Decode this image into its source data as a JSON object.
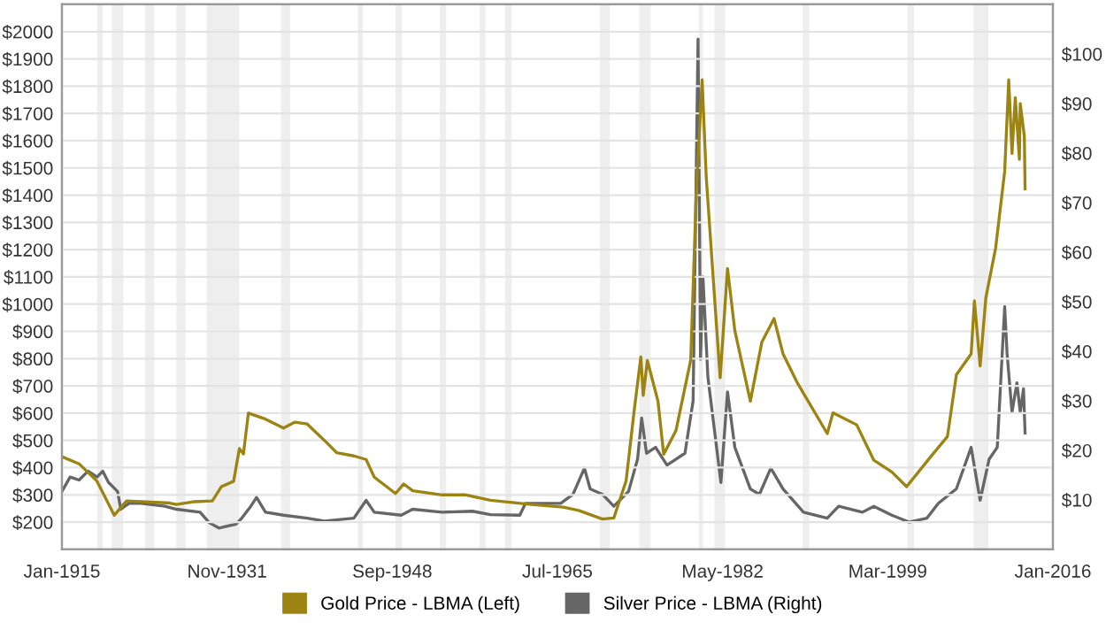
{
  "chart_data": {
    "type": "line",
    "xlim": [
      "1915-01",
      "2016-01"
    ],
    "xticks": [
      {
        "value": "1915-01",
        "label": "Jan-1915"
      },
      {
        "value": "1931-11",
        "label": "Nov-1931"
      },
      {
        "value": "1948-09",
        "label": "Sep-1948"
      },
      {
        "value": "1965-07",
        "label": "Jul-1965"
      },
      {
        "value": "1982-05",
        "label": "May-1982"
      },
      {
        "value": "1999-03",
        "label": "Mar-1999"
      },
      {
        "value": "2016-01",
        "label": "Jan-2016"
      }
    ],
    "ylim": [
      100,
      2100
    ],
    "yticks": [
      {
        "value": 200,
        "label": "$200"
      },
      {
        "value": 300,
        "label": "$300"
      },
      {
        "value": 400,
        "label": "$400"
      },
      {
        "value": 500,
        "label": "$500"
      },
      {
        "value": 600,
        "label": "$600"
      },
      {
        "value": 700,
        "label": "$700"
      },
      {
        "value": 800,
        "label": "$800"
      },
      {
        "value": 900,
        "label": "$900"
      },
      {
        "value": 1000,
        "label": "$1000"
      },
      {
        "value": 1100,
        "label": "$1100"
      },
      {
        "value": 1200,
        "label": "$1200"
      },
      {
        "value": 1300,
        "label": "$1300"
      },
      {
        "value": 1400,
        "label": "$1400"
      },
      {
        "value": 1500,
        "label": "$1500"
      },
      {
        "value": 1600,
        "label": "$1600"
      },
      {
        "value": 1700,
        "label": "$1700"
      },
      {
        "value": 1800,
        "label": "$1800"
      },
      {
        "value": 1900,
        "label": "$1900"
      },
      {
        "value": 2000,
        "label": "$2000"
      }
    ],
    "y2lim": [
      0,
      110
    ],
    "y2ticks": [
      {
        "value": 10,
        "label": "$10"
      },
      {
        "value": 20,
        "label": "$20"
      },
      {
        "value": 30,
        "label": "$30"
      },
      {
        "value": 40,
        "label": "$40"
      },
      {
        "value": 50,
        "label": "$50"
      },
      {
        "value": 60,
        "label": "$60"
      },
      {
        "value": 70,
        "label": "$70"
      },
      {
        "value": 80,
        "label": "$80"
      },
      {
        "value": 90,
        "label": "$90"
      },
      {
        "value": 100,
        "label": "$100"
      }
    ],
    "grid": "y",
    "legend": "bottom",
    "bands": [
      {
        "axis": "x",
        "from": "1918-08",
        "to": "1919-03",
        "color": "#eeeeee"
      },
      {
        "axis": "x",
        "from": "1920-02",
        "to": "1921-04",
        "color": "#eeeeee"
      },
      {
        "axis": "x",
        "from": "1923-07",
        "to": "1924-06",
        "color": "#eeeeee"
      },
      {
        "axis": "x",
        "from": "1926-09",
        "to": "1927-08",
        "color": "#eeeeee"
      },
      {
        "axis": "x",
        "from": "1929-10",
        "to": "1933-02",
        "color": "#eeeeee"
      },
      {
        "axis": "x",
        "from": "1937-05",
        "to": "1938-04",
        "color": "#eeeeee"
      },
      {
        "axis": "x",
        "from": "1945-03",
        "to": "1945-09",
        "color": "#eeeeee"
      },
      {
        "axis": "x",
        "from": "1949-01",
        "to": "1949-09",
        "color": "#eeeeee"
      },
      {
        "axis": "x",
        "from": "1953-07",
        "to": "1954-03",
        "color": "#eeeeee"
      },
      {
        "axis": "x",
        "from": "1957-08",
        "to": "1958-03",
        "color": "#eeeeee"
      },
      {
        "axis": "x",
        "from": "1960-03",
        "to": "1960-11",
        "color": "#eeeeee"
      },
      {
        "axis": "x",
        "from": "1969-11",
        "to": "1970-11",
        "color": "#eeeeee"
      },
      {
        "axis": "x",
        "from": "1973-11",
        "to": "1975-01",
        "color": "#eeeeee"
      },
      {
        "axis": "x",
        "from": "1979-12",
        "to": "1980-05",
        "color": "#eeeeee"
      },
      {
        "axis": "x",
        "from": "1981-07",
        "to": "1982-08",
        "color": "#eeeeee"
      },
      {
        "axis": "x",
        "from": "1990-07",
        "to": "1991-03",
        "color": "#eeeeee"
      },
      {
        "axis": "x",
        "from": "2001-03",
        "to": "2001-11",
        "color": "#eeeeee"
      },
      {
        "axis": "x",
        "from": "2007-12",
        "to": "2009-06",
        "color": "#eeeeee"
      }
    ],
    "series": [
      {
        "name": "Gold Price - LBMA (Left)",
        "color": "#9c8412",
        "x": [
          "1915-01",
          "1916-10",
          "1918-08",
          "1920-05",
          "1921-08",
          "1926-01",
          "1926-09",
          "1928-07",
          "1930-05",
          "1931-04",
          "1932-07",
          "1933-02",
          "1933-07",
          "1934-01",
          "1935-10",
          "1937-08",
          "1938-10",
          "1940-01",
          "1941-10",
          "1943-01",
          "1944-10",
          "1946-01",
          "1946-11",
          "1949-01",
          "1949-11",
          "1950-10",
          "1953-10",
          "1956-03",
          "1958-09",
          "1962-11",
          "1966-02",
          "1967-09",
          "1970-02",
          "1971-04",
          "1972-07",
          "1973-05",
          "1974-01",
          "1974-04",
          "1974-09",
          "1975-10",
          "1976-05",
          "1977-08",
          "1979-02",
          "1979-09",
          "1980-04",
          "1980-09",
          "1981-07",
          "1982-02",
          "1982-11",
          "1983-08",
          "1985-03",
          "1986-05",
          "1987-08",
          "1988-07",
          "1990-01",
          "1993-01",
          "1993-08",
          "1996-01",
          "1997-10",
          "1999-08",
          "2001-02",
          "2003-10",
          "2005-04",
          "2006-03",
          "2007-09",
          "2008-01",
          "2008-08",
          "2009-03",
          "2010-03",
          "2011-02",
          "2011-07",
          "2011-11",
          "2012-03",
          "2012-08",
          "2012-09",
          "2013-02",
          "2013-03"
        ],
        "values": [
          440,
          414,
          350,
          225,
          278,
          270,
          265,
          275,
          278,
          330,
          350,
          470,
          450,
          600,
          578,
          545,
          567,
          560,
          500,
          455,
          443,
          430,
          365,
          305,
          340,
          315,
          300,
          300,
          280,
          265,
          255,
          243,
          211,
          215,
          351,
          611,
          806,
          665,
          793,
          644,
          449,
          536,
          795,
          1423,
          1823,
          1466,
          1033,
          730,
          1131,
          903,
          644,
          860,
          947,
          817,
          708,
          525,
          601,
          557,
          427,
          384,
          330,
          449,
          514,
          741,
          817,
          1012,
          773,
          1023,
          1206,
          1488,
          1823,
          1553,
          1758,
          1531,
          1736,
          1617,
          1423
        ]
      },
      {
        "name": "Silver Price - LBMA (Right)",
        "color": "#666666",
        "axis": "y2",
        "x": [
          "1915-01",
          "1915-11",
          "1916-10",
          "1917-09",
          "1918-08",
          "1919-03",
          "1919-10",
          "1920-09",
          "1921-01",
          "1921-11",
          "1923-02",
          "1925-07",
          "1926-09",
          "1929-02",
          "1930-01",
          "1931-01",
          "1932-10",
          "1933-05",
          "1934-04",
          "1934-11",
          "1935-10",
          "1937-08",
          "1940-01",
          "1941-10",
          "1944-10",
          "1946-01",
          "1946-11",
          "1949-08",
          "1950-10",
          "1953-10",
          "1956-11",
          "1958-09",
          "1961-09",
          "1962-04",
          "1965-11",
          "1967-02",
          "1968-04",
          "1968-11",
          "1970-02",
          "1971-04",
          "1972-10",
          "1973-09",
          "1974-02",
          "1974-08",
          "1975-07",
          "1976-09",
          "1978-07",
          "1979-05",
          "1979-11",
          "1980-02",
          "1980-05",
          "1980-11",
          "1982-03",
          "1982-11",
          "1983-08",
          "1985-03",
          "1986-02",
          "1987-04",
          "1988-07",
          "1990-08",
          "1993-01",
          "1994-03",
          "1996-08",
          "1997-10",
          "1999-08",
          "2001-05",
          "2003-03",
          "2004-05",
          "2006-03",
          "2007-09",
          "2008-08",
          "2009-07",
          "2010-05",
          "2011-02",
          "2011-05",
          "2011-11",
          "2012-05",
          "2012-09",
          "2013-01",
          "2013-03"
        ],
        "values": [
          11.7,
          14.6,
          14,
          15.8,
          14.6,
          15.8,
          13.5,
          11.7,
          8.1,
          9.3,
          9.3,
          8.7,
          8.1,
          7.5,
          5.4,
          4.3,
          5.1,
          6.3,
          8.7,
          10.5,
          7.5,
          6.9,
          6.3,
          5.7,
          6.3,
          9.9,
          7.5,
          6.9,
          8.1,
          7.5,
          7.7,
          7,
          6.9,
          9.3,
          9.3,
          11.1,
          16.4,
          12.2,
          11.1,
          8.7,
          11.7,
          18.2,
          26.5,
          19.4,
          20.6,
          17,
          19.4,
          30,
          103,
          38.4,
          55,
          34.8,
          13.5,
          31.8,
          20.6,
          12.2,
          11.1,
          16.4,
          12.2,
          7.5,
          6.3,
          8.7,
          7.5,
          8.7,
          6.9,
          5.5,
          6.3,
          9.3,
          12.2,
          20.6,
          9.9,
          18.2,
          20.6,
          49,
          39.5,
          27.7,
          33.6,
          27.7,
          32.4,
          23.5
        ]
      }
    ]
  }
}
